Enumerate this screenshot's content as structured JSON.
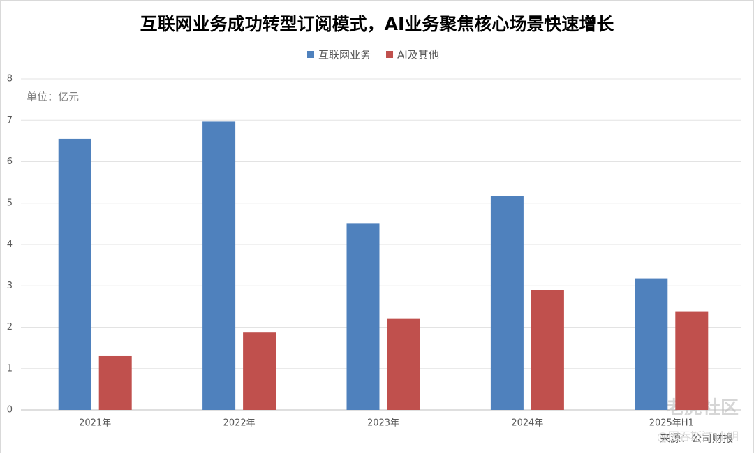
{
  "chart_data": {
    "type": "bar",
    "title": "互联网业务成功转型订阅模式，AI业务聚焦核心场景快速增长",
    "unit_note": "单位：亿元",
    "source_note": "来源：公司财报",
    "watermarks": [
      "老虎社区",
      "@因吞斯汀 小明"
    ],
    "categories": [
      "2021年",
      "2022年",
      "2023年",
      "2024年",
      "2025年H1"
    ],
    "series": [
      {
        "name": "互联网业务",
        "color": "#4f81bd",
        "values": [
          6.55,
          6.98,
          4.5,
          5.18,
          3.18
        ]
      },
      {
        "name": "AI及其他",
        "color": "#c0504d",
        "values": [
          1.3,
          1.87,
          2.2,
          2.9,
          2.37
        ]
      }
    ],
    "ylim": [
      0,
      8
    ],
    "yticks": [
      0,
      1,
      2,
      3,
      4,
      5,
      6,
      7,
      8
    ],
    "grid": true,
    "legend": "top"
  }
}
